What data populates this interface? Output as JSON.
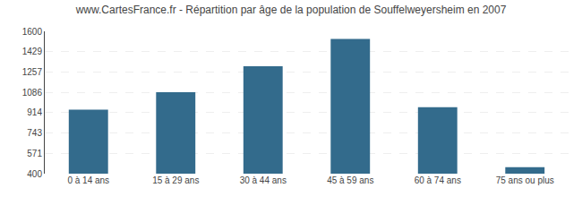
{
  "chart_data": {
    "type": "bar",
    "title": "www.CartesFrance.fr - Répartition par âge de la population de Souffelweyersheim en 2007",
    "categories": [
      "0 à 14 ans",
      "15 à 29 ans",
      "30 à 44 ans",
      "45 à 59 ans",
      "60 à 74 ans",
      "75 ans ou plus"
    ],
    "values": [
      940,
      1086,
      1305,
      1535,
      960,
      455
    ],
    "color": "#336b8c",
    "ylim": [
      400,
      1600
    ],
    "yticks": [
      400,
      571,
      743,
      914,
      1086,
      1257,
      1429,
      1600
    ],
    "grid": true
  }
}
